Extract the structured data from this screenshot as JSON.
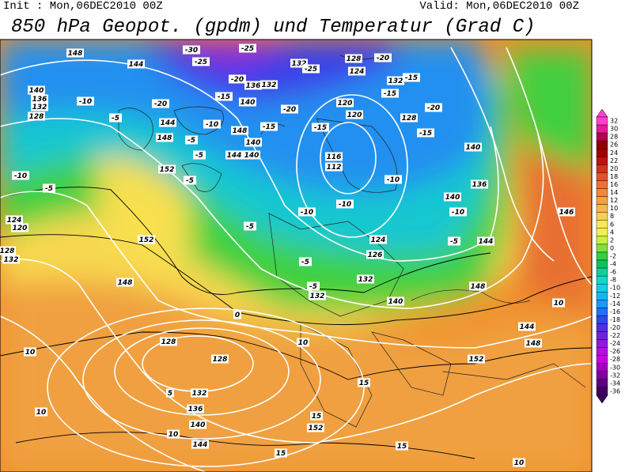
{
  "header": {
    "init": "Init : Mon,06DEC2010 00Z",
    "valid": "Valid: Mon,06DEC2010 00Z",
    "title": "850 hPa Geopot. (gpdm) und Temperatur (Grad C)"
  },
  "colorbar": {
    "ticks": [
      32,
      30,
      28,
      26,
      24,
      22,
      20,
      18,
      16,
      14,
      12,
      10,
      8,
      6,
      4,
      2,
      0,
      -2,
      -4,
      -6,
      -8,
      -10,
      -12,
      -14,
      -16,
      -18,
      -20,
      -22,
      -24,
      -26,
      -28,
      -30,
      -32,
      -34,
      -36
    ],
    "colors": [
      "#ff3fd0",
      "#e8189a",
      "#b40050",
      "#8c0000",
      "#a00000",
      "#c01010",
      "#d83020",
      "#e85028",
      "#f07030",
      "#f08838",
      "#f8a040",
      "#f8b848",
      "#f8d050",
      "#f8e858",
      "#f0f050",
      "#c8f040",
      "#80e040",
      "#30d040",
      "#10c060",
      "#10d098",
      "#10d8c8",
      "#10d0e8",
      "#10b8f0",
      "#1898f8",
      "#2070f8",
      "#3048f0",
      "#5030e0",
      "#7020e0",
      "#9018e0",
      "#b010e0",
      "#c800e0",
      "#a000c0",
      "#8000a0",
      "#600080",
      "#400060"
    ]
  },
  "map_labels": [
    "148",
    "144",
    "-30",
    "-25",
    "-25",
    "132",
    "-25",
    "128",
    "-20",
    "124",
    "-20",
    "136",
    "132",
    "-15",
    "140",
    "-20",
    "-20",
    "120",
    "132",
    "-15",
    "-15",
    "-20",
    "128",
    "-15",
    "140",
    "-10",
    "-5",
    "-10",
    "140",
    "136",
    "132",
    "128",
    "-5",
    "144",
    "148",
    "-10",
    "-5",
    "148",
    "-15",
    "-15",
    "120",
    "140",
    "-5",
    "144",
    "140",
    "152",
    "-5",
    "116",
    "112",
    "-10",
    "-10",
    "-10",
    "-10",
    "140",
    "136",
    "124",
    "120",
    "128",
    "132",
    "152",
    "-5",
    "124",
    "126",
    "-5",
    "144",
    "-5",
    "148",
    "-5",
    "132",
    "132",
    "140",
    "148",
    "144",
    "148",
    "128",
    "128",
    "132",
    "136",
    "140",
    "144",
    "10",
    "10",
    "10",
    "15",
    "15",
    "152",
    "15",
    "15",
    "10",
    "152",
    "146",
    "10",
    "0",
    "5",
    "10"
  ]
}
